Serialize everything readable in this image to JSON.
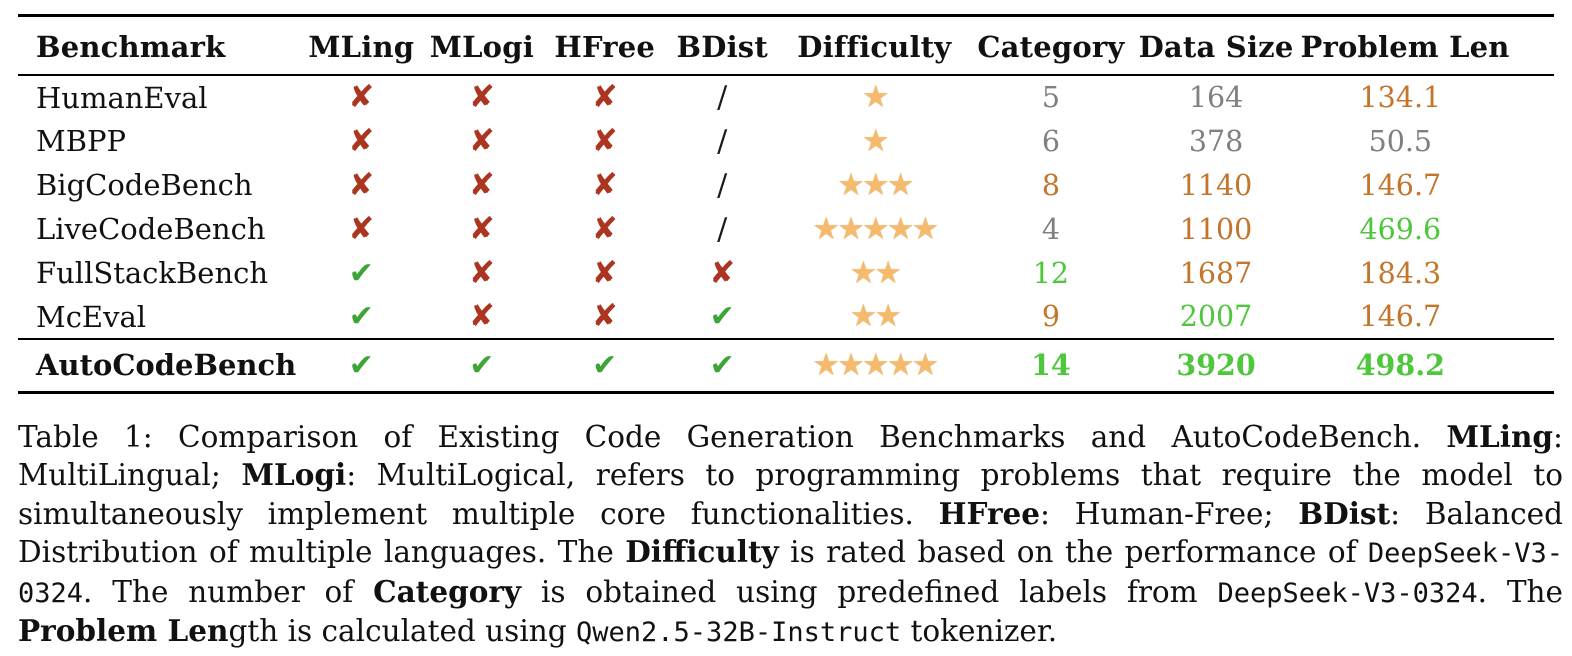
{
  "colors": {
    "cross": "#ac3520",
    "check": "#3da535",
    "star": "#f5ba6b",
    "star-edge": "#c9bda9",
    "orange": "#c2752b",
    "green": "#4ec73c",
    "gray": "#808080",
    "ink": "#111111",
    "rule": "#000000"
  },
  "table": {
    "headers": [
      "Benchmark",
      "MLing",
      "MLogi",
      "HFree",
      "BDist",
      "Difficulty",
      "Category",
      "Data Size",
      "Problem Len"
    ],
    "rows": [
      {
        "benchmark": "HumanEval",
        "mling": "cross",
        "mlogi": "cross",
        "hfree": "cross",
        "bdist": "slash",
        "difficulty": 1,
        "category": {
          "value": "5",
          "tone": "gray"
        },
        "data_size": {
          "value": "164",
          "tone": "gray"
        },
        "problem_len": {
          "value": "134.1",
          "tone": "orange"
        }
      },
      {
        "benchmark": "MBPP",
        "mling": "cross",
        "mlogi": "cross",
        "hfree": "cross",
        "bdist": "slash",
        "difficulty": 1,
        "category": {
          "value": "6",
          "tone": "gray"
        },
        "data_size": {
          "value": "378",
          "tone": "gray"
        },
        "problem_len": {
          "value": "50.5",
          "tone": "gray"
        }
      },
      {
        "benchmark": "BigCodeBench",
        "mling": "cross",
        "mlogi": "cross",
        "hfree": "cross",
        "bdist": "slash",
        "difficulty": 3,
        "category": {
          "value": "8",
          "tone": "orange"
        },
        "data_size": {
          "value": "1140",
          "tone": "orange"
        },
        "problem_len": {
          "value": "146.7",
          "tone": "orange"
        }
      },
      {
        "benchmark": "LiveCodeBench",
        "mling": "cross",
        "mlogi": "cross",
        "hfree": "cross",
        "bdist": "slash",
        "difficulty": 5,
        "category": {
          "value": "4",
          "tone": "gray"
        },
        "data_size": {
          "value": "1100",
          "tone": "orange"
        },
        "problem_len": {
          "value": "469.6",
          "tone": "green"
        }
      },
      {
        "benchmark": "FullStackBench",
        "mling": "check",
        "mlogi": "cross",
        "hfree": "cross",
        "bdist": "cross",
        "difficulty": 2,
        "category": {
          "value": "12",
          "tone": "green"
        },
        "data_size": {
          "value": "1687",
          "tone": "orange"
        },
        "problem_len": {
          "value": "184.3",
          "tone": "orange"
        }
      },
      {
        "benchmark": "McEval",
        "mling": "check",
        "mlogi": "cross",
        "hfree": "cross",
        "bdist": "check",
        "difficulty": 2,
        "category": {
          "value": "9",
          "tone": "orange"
        },
        "data_size": {
          "value": "2007",
          "tone": "green"
        },
        "problem_len": {
          "value": "146.7",
          "tone": "orange"
        }
      },
      {
        "benchmark": "AutoCodeBench",
        "mling": "check",
        "mlogi": "check",
        "hfree": "check",
        "bdist": "check",
        "difficulty": 5,
        "category": {
          "value": "14",
          "tone": "green"
        },
        "data_size": {
          "value": "3920",
          "tone": "green"
        },
        "problem_len": {
          "value": "498.2",
          "tone": "green"
        }
      }
    ]
  },
  "caption": {
    "segments": [
      {
        "style": "normal",
        "text": "Table 1: Comparison of Existing Code Generation Benchmarks and AutoCodeBench. "
      },
      {
        "style": "bold",
        "text": "MLing"
      },
      {
        "style": "normal",
        "text": ": MultiLingual; "
      },
      {
        "style": "bold",
        "text": "MLogi"
      },
      {
        "style": "normal",
        "text": ": MultiLogical, refers to programming problems that require the model to simultaneously implement multiple core functionalities. "
      },
      {
        "style": "bold",
        "text": "HFree"
      },
      {
        "style": "normal",
        "text": ": Human-Free; "
      },
      {
        "style": "bold",
        "text": "BDist"
      },
      {
        "style": "normal",
        "text": ": Balanced Distribution of multiple languages. The "
      },
      {
        "style": "bold",
        "text": "Difficulty"
      },
      {
        "style": "normal",
        "text": " is rated based on the performance of "
      },
      {
        "style": "mono",
        "text": "DeepSeek-V3-0324"
      },
      {
        "style": "normal",
        "text": ". The number of "
      },
      {
        "style": "bold",
        "text": "Category"
      },
      {
        "style": "normal",
        "text": " is obtained using predefined labels from "
      },
      {
        "style": "mono",
        "text": "DeepSeek-V3-0324"
      },
      {
        "style": "normal",
        "text": ". The "
      },
      {
        "style": "bold",
        "text": "Problem Len"
      },
      {
        "style": "normal",
        "text": "gth is calculated using "
      },
      {
        "style": "mono",
        "text": "Qwen2.5-32B-Instruct"
      },
      {
        "style": "normal",
        "text": " tokenizer."
      }
    ]
  }
}
